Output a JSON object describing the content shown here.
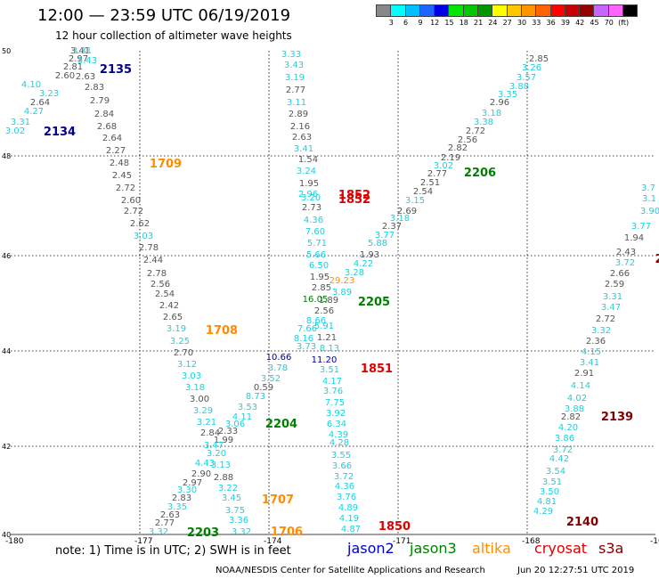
{
  "header": {
    "title": "12:00 — 23:59 UTC 06/19/2019",
    "subtitle": "12 hour collection of altimeter wave heights"
  },
  "color_scale": {
    "colors": [
      "#888888",
      "#00ffff",
      "#00bfff",
      "#1e64ff",
      "#0000e6",
      "#00e600",
      "#00c800",
      "#009600",
      "#ffff00",
      "#ffc800",
      "#ff9600",
      "#ff6400",
      "#ff0000",
      "#c80000",
      "#960000",
      "#c864ff",
      "#ff64ff",
      "#000000"
    ],
    "labels": [
      "3",
      "6",
      "9",
      "12",
      "15",
      "18",
      "21",
      "24",
      "27",
      "30",
      "33",
      "36",
      "39",
      "42",
      "45",
      "70",
      "(ft)"
    ]
  },
  "map": {
    "lat_ticks": [
      "50",
      "48",
      "46",
      "44",
      "42",
      "40"
    ],
    "lon_ticks": [
      "-180",
      "-177",
      "-174",
      "-171",
      "-168",
      "-16"
    ],
    "colors": {
      "gray": "#555555",
      "cyan": "#1ad1e0",
      "navy": "#00008b",
      "green": "#008000",
      "orange": "#ff8c00",
      "red": "#e00000",
      "darkred": "#800000"
    },
    "values": [
      [
        "3.41",
        "gray"
      ],
      [
        "3.31",
        "cyan"
      ],
      [
        "2.97",
        "gray"
      ],
      [
        "3.43",
        "cyan"
      ],
      [
        "2.81",
        "gray"
      ],
      [
        "2.60",
        "gray"
      ],
      [
        "2.63",
        "gray"
      ],
      [
        "4.10",
        "cyan"
      ],
      [
        "3.23",
        "cyan"
      ],
      [
        "2.83",
        "gray"
      ],
      [
        "2.64",
        "gray"
      ],
      [
        "2.79",
        "gray"
      ],
      [
        "4.27",
        "cyan"
      ],
      [
        "2.84",
        "gray"
      ],
      [
        "3.31",
        "cyan"
      ],
      [
        "2.68",
        "gray"
      ],
      [
        "3.02",
        "cyan"
      ],
      [
        "2.64",
        "gray"
      ],
      [
        "2.27",
        "gray"
      ],
      [
        "2.48",
        "gray"
      ],
      [
        "2.45",
        "gray"
      ],
      [
        "2.72",
        "gray"
      ],
      [
        "2.60",
        "gray"
      ],
      [
        "2.72",
        "gray"
      ],
      [
        "2.62",
        "gray"
      ],
      [
        "3.03",
        "cyan"
      ],
      [
        "2.78",
        "gray"
      ],
      [
        "2.44",
        "gray"
      ],
      [
        "2.78",
        "gray"
      ],
      [
        "2.56",
        "gray"
      ],
      [
        "2.54",
        "gray"
      ],
      [
        "2.42",
        "gray"
      ],
      [
        "2.65",
        "gray"
      ],
      [
        "3.19",
        "cyan"
      ],
      [
        "3.25",
        "cyan"
      ],
      [
        "2.70",
        "gray"
      ],
      [
        "3.12",
        "cyan"
      ],
      [
        "3.03",
        "cyan"
      ],
      [
        "3.18",
        "cyan"
      ],
      [
        "3.00",
        "gray"
      ],
      [
        "3.29",
        "cyan"
      ],
      [
        "3.21",
        "cyan"
      ],
      [
        "2.84",
        "gray"
      ],
      [
        "2.33",
        "gray"
      ],
      [
        "1.99",
        "gray"
      ],
      [
        "3.47",
        "cyan"
      ],
      [
        "3.20",
        "cyan"
      ],
      [
        "4.43",
        "cyan"
      ],
      [
        "3.13",
        "cyan"
      ],
      [
        "2.90",
        "gray"
      ],
      [
        "2.88",
        "gray"
      ],
      [
        "2.97",
        "gray"
      ],
      [
        "3.30",
        "cyan"
      ],
      [
        "3.22",
        "cyan"
      ],
      [
        "2.83",
        "gray"
      ],
      [
        "3.45",
        "cyan"
      ],
      [
        "3.35",
        "cyan"
      ],
      [
        "2.63",
        "gray"
      ],
      [
        "3.75",
        "cyan"
      ],
      [
        "2.77",
        "gray"
      ],
      [
        "3.36",
        "cyan"
      ],
      [
        "3.32",
        "cyan"
      ],
      [
        "3.32",
        "cyan"
      ],
      [
        "3.33",
        "cyan"
      ],
      [
        "3.43",
        "cyan"
      ],
      [
        "3.19",
        "cyan"
      ],
      [
        "2.77",
        "gray"
      ],
      [
        "3.11",
        "cyan"
      ],
      [
        "2.89",
        "gray"
      ],
      [
        "2.16",
        "gray"
      ],
      [
        "2.63",
        "gray"
      ],
      [
        "3.41",
        "cyan"
      ],
      [
        "1.54",
        "gray"
      ],
      [
        "3.24",
        "cyan"
      ],
      [
        "1.95",
        "gray"
      ],
      [
        "2.96",
        "cyan"
      ],
      [
        "3.20",
        "cyan"
      ],
      [
        "2.73",
        "gray"
      ],
      [
        "4.36",
        "cyan"
      ],
      [
        "7.60",
        "cyan"
      ],
      [
        "5.71",
        "cyan"
      ],
      [
        "5.66",
        "cyan"
      ],
      [
        "6.50",
        "cyan"
      ],
      [
        "1.95",
        "gray"
      ],
      [
        "2.85",
        "gray"
      ],
      [
        "16.05",
        "green"
      ],
      [
        "1.89",
        "gray"
      ],
      [
        "2.56",
        "gray"
      ],
      [
        "8.66",
        "cyan"
      ],
      [
        "5.91",
        "cyan"
      ],
      [
        "7.66",
        "cyan"
      ],
      [
        "8.16",
        "cyan"
      ],
      [
        "1.21",
        "gray"
      ],
      [
        "3.73",
        "cyan"
      ],
      [
        "8.13",
        "cyan"
      ],
      [
        "10.66",
        "navy"
      ],
      [
        "11.20",
        "navy"
      ],
      [
        "3.78",
        "cyan"
      ],
      [
        "3.51",
        "cyan"
      ],
      [
        "3.52",
        "cyan"
      ],
      [
        "4.17",
        "cyan"
      ],
      [
        "0.59",
        "gray"
      ],
      [
        "3.76",
        "cyan"
      ],
      [
        "8.73",
        "cyan"
      ],
      [
        "7.75",
        "cyan"
      ],
      [
        "3.53",
        "cyan"
      ],
      [
        "3.92",
        "cyan"
      ],
      [
        "4.11",
        "cyan"
      ],
      [
        "6.34",
        "cyan"
      ],
      [
        "3.06",
        "cyan"
      ],
      [
        "4.39",
        "cyan"
      ],
      [
        "4.28",
        "cyan"
      ],
      [
        "3.55",
        "cyan"
      ],
      [
        "3.66",
        "cyan"
      ],
      [
        "3.72",
        "cyan"
      ],
      [
        "4.36",
        "cyan"
      ],
      [
        "3.76",
        "cyan"
      ],
      [
        "4.89",
        "cyan"
      ],
      [
        "4.19",
        "cyan"
      ],
      [
        "4.87",
        "cyan"
      ],
      [
        "2.85",
        "gray"
      ],
      [
        "3.26",
        "cyan"
      ],
      [
        "3.57",
        "cyan"
      ],
      [
        "3.88",
        "cyan"
      ],
      [
        "3.35",
        "cyan"
      ],
      [
        "2.96",
        "gray"
      ],
      [
        "3.18",
        "cyan"
      ],
      [
        "3.38",
        "cyan"
      ],
      [
        "2.72",
        "gray"
      ],
      [
        "2.56",
        "gray"
      ],
      [
        "2.82",
        "gray"
      ],
      [
        "2.19",
        "gray"
      ],
      [
        "2.77",
        "gray"
      ],
      [
        "3.02",
        "cyan"
      ],
      [
        "2.51",
        "gray"
      ],
      [
        "2.54",
        "gray"
      ],
      [
        "3.15",
        "cyan"
      ],
      [
        "2.69",
        "gray"
      ],
      [
        "3.18",
        "cyan"
      ],
      [
        "2.37",
        "gray"
      ],
      [
        "3.77",
        "cyan"
      ],
      [
        "5.88",
        "cyan"
      ],
      [
        "1.93",
        "gray"
      ],
      [
        "4.22",
        "cyan"
      ],
      [
        "3.28",
        "cyan"
      ],
      [
        "29.23",
        "orange"
      ],
      [
        "3.89",
        "cyan"
      ],
      [
        "3.7",
        "cyan"
      ],
      [
        "3.1",
        "cyan"
      ],
      [
        "3.90",
        "cyan"
      ],
      [
        "3.77",
        "cyan"
      ],
      [
        "1.94",
        "gray"
      ],
      [
        "2.43",
        "gray"
      ],
      [
        "3.72",
        "cyan"
      ],
      [
        "2.66",
        "gray"
      ],
      [
        "2.59",
        "gray"
      ],
      [
        "3.31",
        "cyan"
      ],
      [
        "3.47",
        "cyan"
      ],
      [
        "2.72",
        "gray"
      ],
      [
        "3.32",
        "cyan"
      ],
      [
        "2.36",
        "gray"
      ],
      [
        "4.15",
        "cyan"
      ],
      [
        "3.41",
        "cyan"
      ],
      [
        "2.91",
        "gray"
      ],
      [
        "4.14",
        "cyan"
      ],
      [
        "4.02",
        "cyan"
      ],
      [
        "3.88",
        "cyan"
      ],
      [
        "2.82",
        "gray"
      ],
      [
        "4.20",
        "cyan"
      ],
      [
        "3.86",
        "cyan"
      ],
      [
        "3.72",
        "cyan"
      ],
      [
        "4.42",
        "cyan"
      ],
      [
        "3.54",
        "cyan"
      ],
      [
        "3.51",
        "cyan"
      ],
      [
        "3.50",
        "cyan"
      ],
      [
        "4.81",
        "cyan"
      ],
      [
        "4.29",
        "cyan"
      ]
    ],
    "pass_labels": [
      [
        "2135",
        "navy"
      ],
      [
        "2134",
        "navy"
      ],
      [
        "1709",
        "orange"
      ],
      [
        "1708",
        "orange"
      ],
      [
        "2204",
        "green"
      ],
      [
        "2203",
        "green"
      ],
      [
        "1707",
        "orange"
      ],
      [
        "1706",
        "orange"
      ],
      [
        "1852",
        "red"
      ],
      [
        "1852",
        "red"
      ],
      [
        "2205",
        "green"
      ],
      [
        "1851",
        "red"
      ],
      [
        "1850",
        "red"
      ],
      [
        "2206",
        "green"
      ],
      [
        "2139",
        "darkred"
      ],
      [
        "2140",
        "darkred"
      ],
      [
        "2",
        "darkred"
      ]
    ]
  },
  "footer": {
    "note": "note:  1) Time is in UTC;  2) SWH is in feet",
    "satellites": [
      {
        "name": "jason2",
        "color": "#0000cd"
      },
      {
        "name": "jason3",
        "color": "#008000"
      },
      {
        "name": "altika",
        "color": "#ff8c00"
      },
      {
        "name": "cryosat",
        "color": "#e00000"
      },
      {
        "name": "s3a",
        "color": "#800000"
      }
    ],
    "credit": "NOAA/NESDIS Center for Satellite Applications and Research",
    "timestamp": "Jun 20 12:27:51 UTC 2019"
  }
}
